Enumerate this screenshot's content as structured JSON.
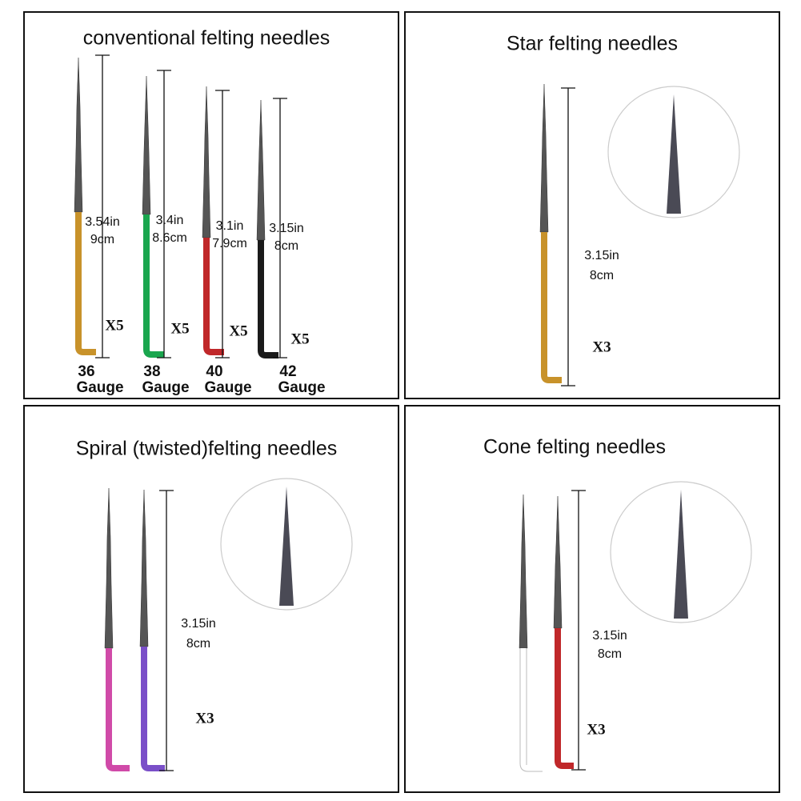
{
  "panels": [
    {
      "title": "conventional felting needles",
      "needles": [
        {
          "length": "3.54in",
          "metric": "9cm",
          "qty": "X5",
          "gauge": "36",
          "unit": "Gauge"
        },
        {
          "length": "3.4in",
          "metric": "8.6cm",
          "qty": "X5",
          "gauge": "38",
          "unit": "Gauge"
        },
        {
          "length": "3.1in",
          "metric": "7.9cm",
          "qty": "X5",
          "gauge": "40",
          "unit": "Gauge"
        },
        {
          "length": "3.15in",
          "metric": "8cm",
          "qty": "X5",
          "gauge": "42",
          "unit": "Gauge"
        }
      ]
    },
    {
      "title": "Star felting needles",
      "length": "3.15in",
      "metric": "8cm",
      "qty": "X3"
    },
    {
      "title": "Spiral (twisted)felting needles",
      "length": "3.15in",
      "metric": "8cm",
      "qty": "X3"
    },
    {
      "title": "Cone felting needles",
      "length": "3.15in",
      "metric": "8cm",
      "qty": "X3"
    }
  ]
}
